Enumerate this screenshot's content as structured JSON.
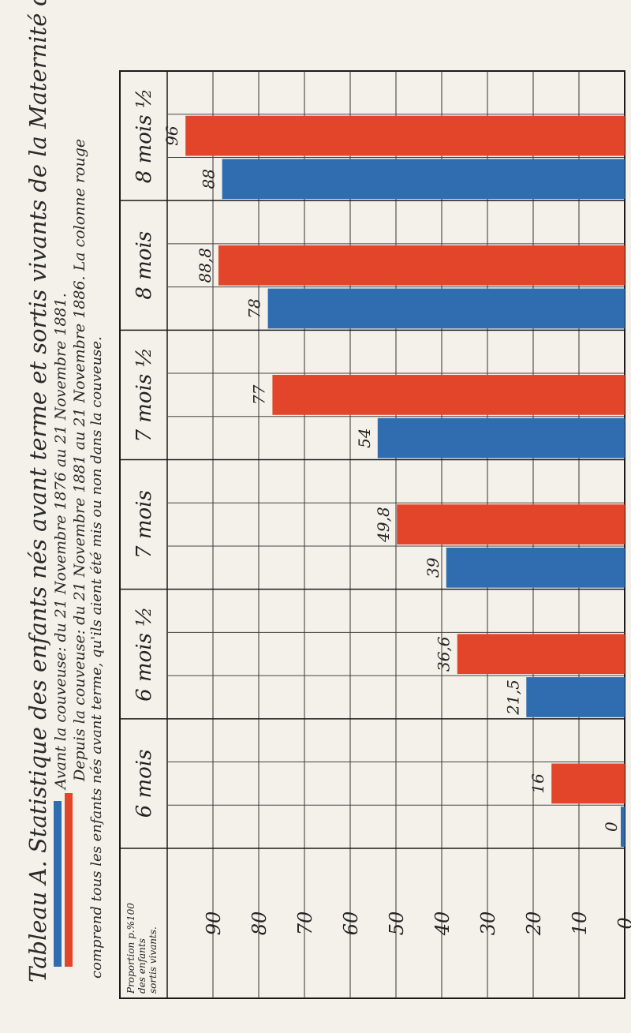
{
  "title": "Tableau A. Statistique des enfants nés avant terme et sortis vivants de la Maternité de Paris",
  "legend": {
    "blue_label": "Avant la couveuse: du 21 Novembre 1876 au 21 Novembre 1881.",
    "red_label": "Depuis la couveuse: du 21 Novembre 1881 au 21 Novembre 1886. La colonne rouge",
    "note": "comprend tous les enfants nés avant terme, qu'ils aient été mis ou non dans la couveuse.",
    "blue_color": "#2f6cb0",
    "red_color": "#e2452a"
  },
  "axis": {
    "header_line1": "Proportion p.%100",
    "header_line2": "des enfants",
    "header_line3": "sortis vivants.",
    "ticks": [
      "90",
      "80",
      "70",
      "60",
      "50",
      "40",
      "30",
      "20",
      "10",
      "0"
    ]
  },
  "chart_data": {
    "type": "bar",
    "orientation": "horizontal",
    "title": "Tableau A. Statistique des enfants nés avant terme et sortis vivants de la Maternité de Paris",
    "xlabel": "Proportion p.%100 des enfants sortis vivants.",
    "xlim": [
      0,
      100
    ],
    "axis_reversed": true,
    "grid": true,
    "categories": [
      "8 mois ½",
      "8 mois",
      "7 mois ½",
      "7 mois",
      "6 mois ½",
      "6 mois"
    ],
    "series": [
      {
        "name": "Depuis la couveuse",
        "color": "#e2452a",
        "values": [
          96,
          88.8,
          77,
          49.8,
          36.6,
          16
        ]
      },
      {
        "name": "Avant la couveuse",
        "color": "#2f6cb0",
        "values": [
          88,
          78,
          54,
          39,
          21.5,
          0
        ]
      }
    ],
    "value_labels": {
      "Depuis la couveuse": [
        "96",
        "88,8",
        "77",
        "49,8",
        "36,6",
        "16"
      ],
      "Avant la couveuse": [
        "88",
        "78",
        "54",
        "39",
        "21,5",
        "0"
      ]
    }
  }
}
